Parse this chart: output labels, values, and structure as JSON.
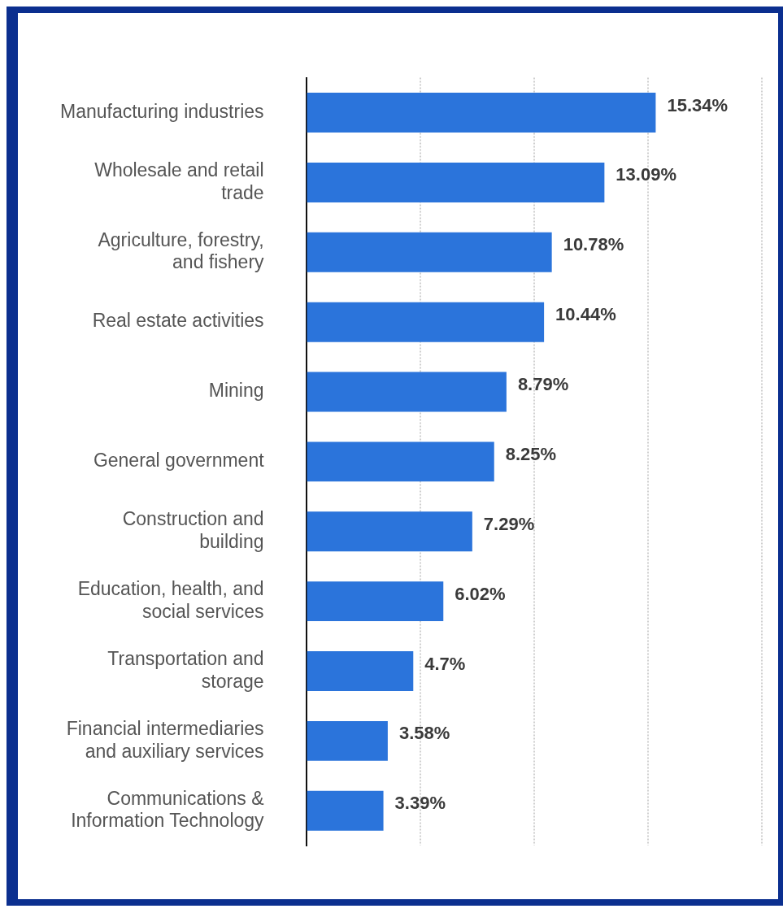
{
  "chart_data": {
    "type": "bar",
    "orientation": "horizontal",
    "categories": [
      "Manufacturing industries",
      "Wholesale and retail trade",
      "Agriculture, forestry, and fishery",
      "Real estate activities",
      "Mining",
      "General government",
      "Construction and building",
      "Education, health, and social services",
      "Transportation and storage",
      "Financial intermediaries and auxiliary services",
      "Communications & Information Technology"
    ],
    "values": [
      15.34,
      13.09,
      10.78,
      10.44,
      8.79,
      8.25,
      7.29,
      6.02,
      4.7,
      3.58,
      3.39
    ],
    "value_labels": [
      "15.34%",
      "13.09%",
      "10.78%",
      "10.44%",
      "8.79%",
      "8.25%",
      "7.29%",
      "6.02%",
      "4.7%",
      "3.58%",
      "3.39%"
    ],
    "color": "#2b74db",
    "xlim": [
      0,
      20
    ],
    "xticks": [
      {
        "value": 0,
        "label": null
      },
      {
        "value": 5,
        "label": null
      },
      {
        "value": 10,
        "label": null
      },
      {
        "value": 15,
        "label": null
      },
      {
        "value": 20,
        "label": null
      }
    ],
    "tick_labels": "y",
    "grid": "x",
    "legend": false
  }
}
